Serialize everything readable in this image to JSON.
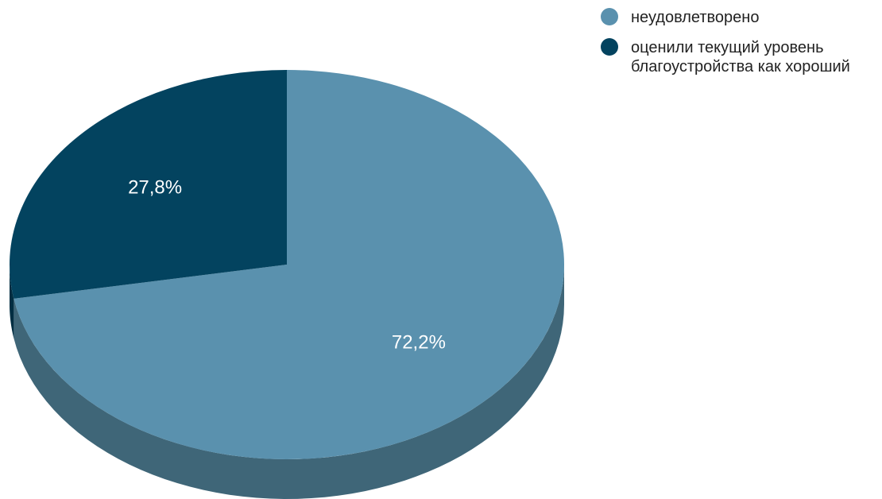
{
  "chart_data": {
    "type": "pie",
    "style": "3d",
    "title": "",
    "slices": [
      {
        "label": "неудовлетворено",
        "value": 72.2,
        "value_label": "72,2%",
        "color": "#5a91ae",
        "side_color": "#3f6678"
      },
      {
        "label": "оценили текущий уровень благоустройства как хороший",
        "value": 27.8,
        "value_label": "27,8%",
        "color": "#03435f",
        "side_color": "#022e42"
      }
    ],
    "legend": {
      "position": "top-right",
      "items": [
        {
          "label": "неудовлетворено",
          "color": "#5a91ae"
        },
        {
          "label": "оценили текущий уровень благоустройства как хороший",
          "color": "#03435f"
        }
      ]
    }
  }
}
